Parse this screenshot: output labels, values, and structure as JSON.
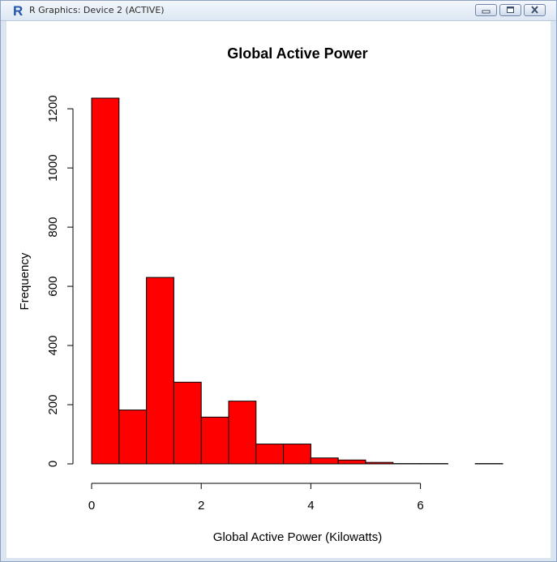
{
  "window": {
    "title": "R Graphics: Device 2 (ACTIVE)",
    "icon": "r-logo-icon",
    "controls": [
      "minimize-icon",
      "maximize-icon",
      "close-icon"
    ]
  },
  "chart_data": {
    "type": "bar",
    "title": "Global Active Power",
    "xlabel": "Global Active Power (Kilowatts)",
    "ylabel": "Frequency",
    "bins": [
      {
        "x0": 0.0,
        "x1": 0.5,
        "count": 1236
      },
      {
        "x0": 0.5,
        "x1": 1.0,
        "count": 182
      },
      {
        "x0": 1.0,
        "x1": 1.5,
        "count": 630
      },
      {
        "x0": 1.5,
        "x1": 2.0,
        "count": 276
      },
      {
        "x0": 2.0,
        "x1": 2.5,
        "count": 158
      },
      {
        "x0": 2.5,
        "x1": 3.0,
        "count": 212
      },
      {
        "x0": 3.0,
        "x1": 3.5,
        "count": 67
      },
      {
        "x0": 3.5,
        "x1": 4.0,
        "count": 67
      },
      {
        "x0": 4.0,
        "x1": 4.5,
        "count": 20
      },
      {
        "x0": 4.5,
        "x1": 5.0,
        "count": 13
      },
      {
        "x0": 5.0,
        "x1": 5.5,
        "count": 5
      },
      {
        "x0": 5.5,
        "x1": 6.0,
        "count": 1
      },
      {
        "x0": 6.0,
        "x1": 6.5,
        "count": 1
      },
      {
        "x0": 6.5,
        "x1": 7.0,
        "count": 0
      },
      {
        "x0": 7.0,
        "x1": 7.5,
        "count": 1
      }
    ],
    "xlim": [
      0,
      7.5
    ],
    "ylim": [
      0,
      1236
    ],
    "xticks": [
      0,
      2,
      4,
      6
    ],
    "yticks": [
      0,
      200,
      400,
      600,
      800,
      1000,
      1200
    ],
    "bar_color": "#ff0000",
    "grid": false
  }
}
